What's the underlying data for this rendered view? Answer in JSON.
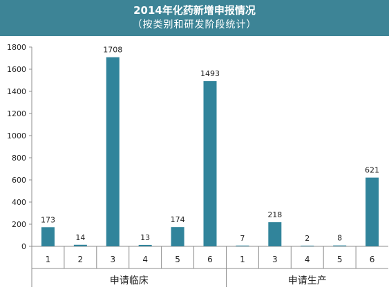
{
  "chart_data": {
    "type": "bar",
    "title": "2014年化药新增申报情况",
    "subtitle": "（按类别和研发阶段统计）",
    "xlabel": "",
    "ylabel": "",
    "ylim": [
      0,
      1800
    ],
    "yticks": [
      0,
      200,
      400,
      600,
      800,
      1000,
      1200,
      1400,
      1600,
      1800
    ],
    "grid": false,
    "legend": "none",
    "bar_color": "#31849b",
    "header_color": "#3d8496",
    "groups": [
      {
        "name": "申请临床",
        "categories": [
          "1",
          "2",
          "3",
          "4",
          "5",
          "6"
        ],
        "values": [
          173,
          14,
          1708,
          13,
          174,
          1493
        ]
      },
      {
        "name": "申请生产",
        "categories": [
          "1",
          "3",
          "4",
          "5",
          "6"
        ],
        "values": [
          7,
          218,
          2,
          8,
          621
        ]
      }
    ]
  }
}
